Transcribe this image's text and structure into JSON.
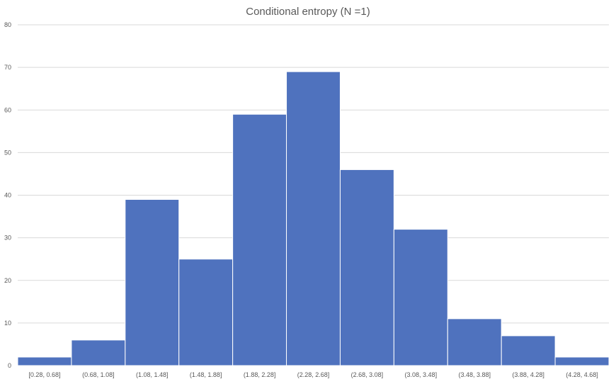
{
  "chart_data": {
    "type": "bar",
    "title": "Conditional entropy (N =1)",
    "xlabel": "",
    "ylabel": "",
    "categories": [
      "[0.28, 0.68]",
      "(0.68, 1.08]",
      "(1.08, 1.48]",
      "(1.48, 1.88]",
      "(1.88, 2.28]",
      "(2.28, 2.68]",
      "(2.68, 3.08]",
      "(3.08, 3.48]",
      "(3.48, 3.88]",
      "(3.88, 4.28]",
      "(4.28, 4.68]"
    ],
    "values": [
      2,
      6,
      39,
      25,
      59,
      69,
      46,
      32,
      11,
      7,
      2
    ],
    "ylim": [
      0,
      80
    ],
    "yticks": [
      0,
      10,
      20,
      30,
      40,
      50,
      60,
      70,
      80
    ],
    "grid": true,
    "legend": "none",
    "bar_color": "#4f72be",
    "grid_color": "#d9d9d9",
    "text_color": "#595959"
  }
}
